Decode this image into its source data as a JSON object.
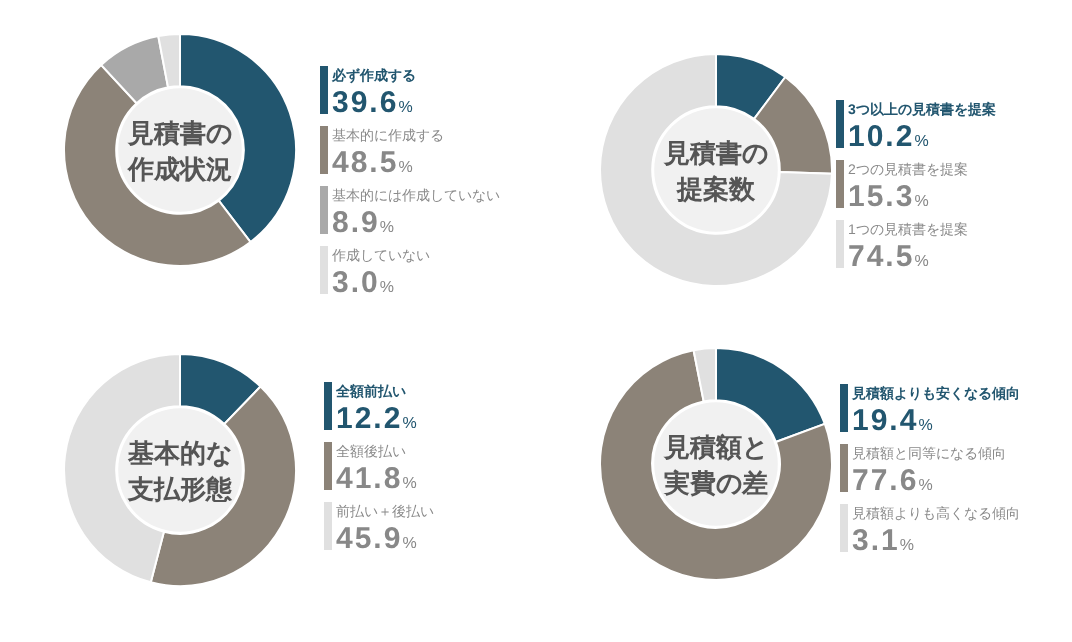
{
  "chart_data": [
    {
      "type": "donut",
      "title": "見積書の作成状況",
      "legend": "right",
      "categories": [
        "必ず作成する",
        "基本的に作成する",
        "基本的には作成していない",
        "作成していない"
      ],
      "values": [
        39.6,
        48.5,
        8.9,
        3.0
      ],
      "value_labels": [
        "39.6%",
        "48.5%",
        "8.9%",
        "3.0%"
      ],
      "colors": [
        "#22566f",
        "#8c8378",
        "#a9a9a9",
        "#e0e0e0"
      ]
    },
    {
      "type": "donut",
      "title": "見積書の提案数",
      "legend": "right",
      "categories": [
        "3つ以上の見積書を提案",
        "2つの見積書を提案",
        "1つの見積書を提案"
      ],
      "values": [
        10.2,
        15.3,
        74.5
      ],
      "value_labels": [
        "10.2%",
        "15.3%",
        "74.5%"
      ],
      "colors": [
        "#22566f",
        "#8c8378",
        "#e0e0e0"
      ]
    },
    {
      "type": "donut",
      "title": "基本的な支払形態",
      "legend": "right",
      "categories": [
        "全額前払い",
        "全額後払い",
        "前払い＋後払い"
      ],
      "values": [
        12.2,
        41.8,
        45.9
      ],
      "value_labels": [
        "12.2%",
        "41.8%",
        "45.9%"
      ],
      "colors": [
        "#22566f",
        "#8c8378",
        "#e0e0e0"
      ]
    },
    {
      "type": "donut",
      "title": "見積額と実費の差",
      "legend": "right",
      "categories": [
        "見積額よりも安くなる傾向",
        "見積額と同等になる傾向",
        "見積額よりも高くなる傾向"
      ],
      "values": [
        19.4,
        77.6,
        3.1
      ],
      "value_labels": [
        "19.4%",
        "77.6%",
        "3.1%"
      ],
      "colors": [
        "#22566f",
        "#8c8378",
        "#e0e0e0"
      ]
    }
  ]
}
